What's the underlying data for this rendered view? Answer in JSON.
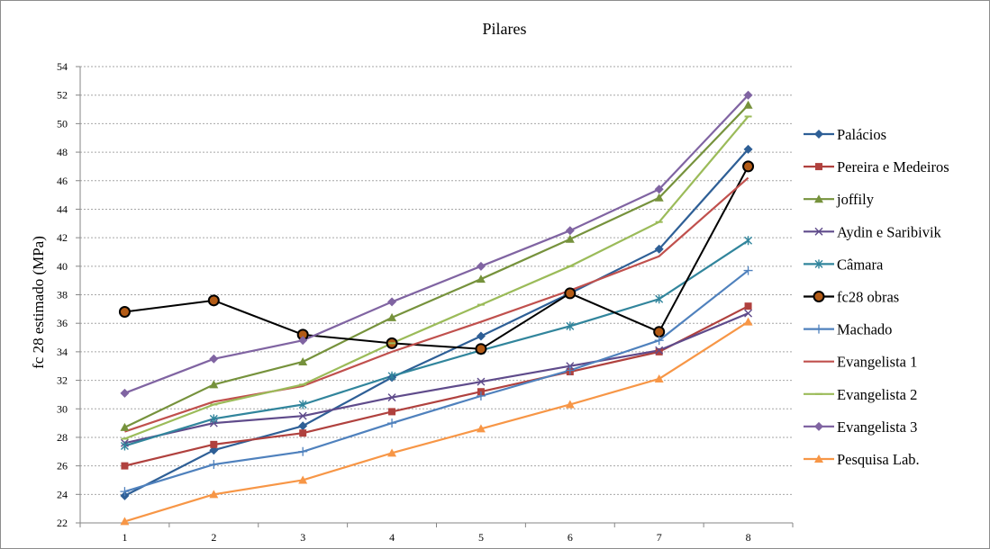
{
  "chart_data": {
    "type": "line",
    "title": "Pilares",
    "xlabel": "",
    "ylabel": "fc 28 estimado (MPa)",
    "categories": [
      "1",
      "2",
      "3",
      "4",
      "5",
      "6",
      "7",
      "8"
    ],
    "ylim": [
      22,
      54
    ],
    "ytick_step": 2,
    "yticks": [
      "22",
      "24",
      "26",
      "28",
      "30",
      "32",
      "34",
      "36",
      "38",
      "40",
      "42",
      "44",
      "46",
      "48",
      "50",
      "52",
      "54"
    ],
    "grid": true,
    "legend_position": "right",
    "series": [
      {
        "name": "Palácios",
        "color": "#2e5f96",
        "marker": "diamond",
        "values": [
          23.9,
          27.1,
          28.8,
          32.2,
          35.1,
          38.1,
          41.2,
          48.2
        ]
      },
      {
        "name": "Pereira e Medeiros",
        "color": "#b0413e",
        "marker": "square",
        "values": [
          26.0,
          27.5,
          28.3,
          29.8,
          31.2,
          32.6,
          34.0,
          37.2
        ]
      },
      {
        "name": "joffily",
        "color": "#76923c",
        "marker": "triangle",
        "values": [
          28.7,
          31.7,
          33.3,
          36.4,
          39.1,
          41.9,
          44.8,
          51.3
        ]
      },
      {
        "name": "Aydin e Saribivik",
        "color": "#5f4b8b",
        "marker": "x",
        "values": [
          27.6,
          29.0,
          29.5,
          30.8,
          31.9,
          33.0,
          34.1,
          36.7
        ]
      },
      {
        "name": "Câmara",
        "color": "#31859c",
        "marker": "star",
        "values": [
          27.4,
          29.3,
          30.3,
          32.3,
          34.1,
          35.8,
          37.7,
          41.8
        ]
      },
      {
        "name": "fc28 obras",
        "color": "#000000",
        "marker": "circle",
        "marker_fill": "#b35b16",
        "values": [
          36.8,
          37.6,
          35.2,
          34.6,
          34.2,
          38.1,
          35.4,
          47.0
        ]
      },
      {
        "name": "Machado",
        "color": "#4f81bd",
        "marker": "plus",
        "values": [
          24.2,
          26.1,
          27.0,
          29.0,
          30.9,
          32.7,
          34.8,
          39.7
        ]
      },
      {
        "name": "Evangelista 1",
        "color": "#c0504d",
        "marker": "none",
        "values": [
          28.4,
          30.5,
          31.6,
          34.0,
          36.1,
          38.3,
          40.7,
          46.2
        ]
      },
      {
        "name": "Evangelista 2",
        "color": "#9bbb59",
        "marker": "dash",
        "values": [
          27.9,
          30.3,
          31.7,
          34.6,
          37.3,
          40.0,
          43.1,
          50.5
        ]
      },
      {
        "name": "Evangelista 3",
        "color": "#8064a2",
        "marker": "diamond",
        "values": [
          31.1,
          33.5,
          34.8,
          37.5,
          40.0,
          42.5,
          45.4,
          52.0
        ]
      },
      {
        "name": "Pesquisa Lab.",
        "color": "#f79646",
        "marker": "triangle",
        "values": [
          22.1,
          24.0,
          25.0,
          26.9,
          28.6,
          30.3,
          32.1,
          36.1
        ]
      }
    ]
  }
}
